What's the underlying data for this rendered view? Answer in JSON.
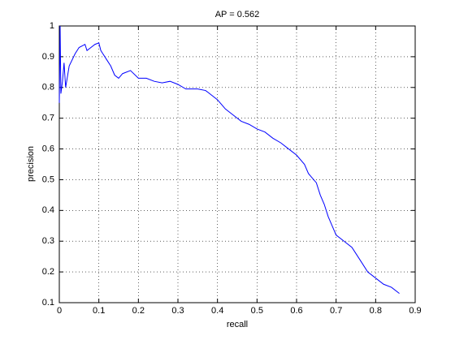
{
  "chart_data": {
    "type": "line",
    "title": "AP = 0.562",
    "x_label": "recall",
    "y_label": "precision",
    "x": [
      0.0,
      0.002,
      0.004,
      0.008,
      0.012,
      0.016,
      0.025,
      0.04,
      0.05,
      0.065,
      0.07,
      0.08,
      0.09,
      0.1,
      0.105,
      0.11,
      0.12,
      0.13,
      0.14,
      0.15,
      0.16,
      0.18,
      0.2,
      0.22,
      0.24,
      0.26,
      0.28,
      0.3,
      0.32,
      0.35,
      0.37,
      0.39,
      0.4,
      0.42,
      0.44,
      0.46,
      0.48,
      0.5,
      0.52,
      0.54,
      0.56,
      0.58,
      0.6,
      0.62,
      0.63,
      0.65,
      0.66,
      0.67,
      0.68,
      0.69,
      0.7,
      0.72,
      0.74,
      0.76,
      0.78,
      0.8,
      0.82,
      0.84,
      0.86
    ],
    "series": [
      {
        "color": "#0000ff",
        "values": [
          0.75,
          1.0,
          0.78,
          0.82,
          0.88,
          0.8,
          0.87,
          0.91,
          0.93,
          0.94,
          0.92,
          0.93,
          0.94,
          0.945,
          0.92,
          0.91,
          0.89,
          0.87,
          0.84,
          0.83,
          0.845,
          0.855,
          0.83,
          0.83,
          0.82,
          0.815,
          0.82,
          0.81,
          0.795,
          0.795,
          0.79,
          0.77,
          0.76,
          0.73,
          0.71,
          0.69,
          0.68,
          0.665,
          0.655,
          0.635,
          0.62,
          0.6,
          0.58,
          0.55,
          0.52,
          0.49,
          0.45,
          0.42,
          0.38,
          0.35,
          0.32,
          0.3,
          0.28,
          0.24,
          0.2,
          0.18,
          0.16,
          0.15,
          0.13
        ]
      }
    ],
    "xlim": [
      0,
      0.9
    ],
    "xticks": [
      0,
      0.1,
      0.2,
      0.3,
      0.4,
      0.5,
      0.6,
      0.7,
      0.8,
      0.9
    ],
    "ylim": [
      0.1,
      1
    ],
    "yticks": [
      0.1,
      0.2,
      0.3,
      0.4,
      0.5,
      0.6,
      0.7,
      0.8,
      0.9,
      1
    ],
    "grid": true
  }
}
